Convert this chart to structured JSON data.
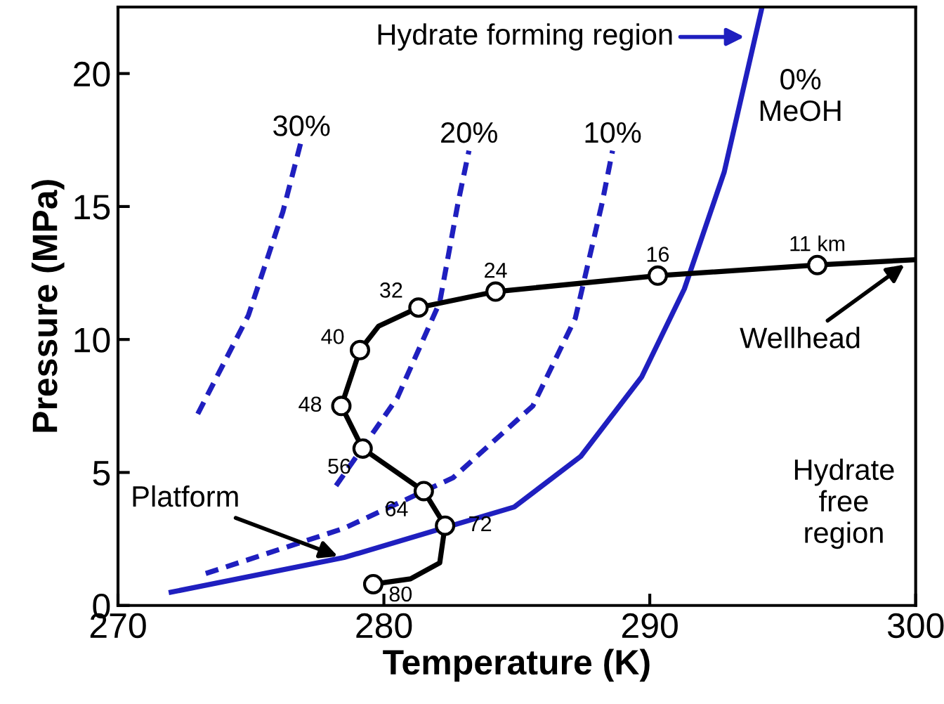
{
  "chart_data": {
    "type": "line",
    "xlabel": "Temperature (K)",
    "ylabel": "Pressure (MPa)",
    "xlim": [
      270,
      300
    ],
    "ylim": [
      0,
      22.5
    ],
    "xticks": [
      270,
      280,
      290,
      300
    ],
    "yticks": [
      0,
      5,
      10,
      15,
      20
    ],
    "grid": false,
    "legend": false,
    "series": [
      {
        "color": "#1f1fbf",
        "line_style": "solid",
        "x": [
          272,
          278.5,
          284.9,
          287.4,
          289.7,
          291.3,
          292.8,
          294.2
        ],
        "values": [
          0.5,
          1.8,
          3.7,
          5.6,
          8.6,
          11.9,
          16.3,
          22.4
        ]
      },
      {
        "color": "#1f1fbf",
        "line_style": "dashed",
        "x": [
          273.3,
          278.5,
          282.6,
          285.6,
          287.2,
          288.2,
          288.6
        ],
        "values": [
          1.2,
          2.9,
          4.8,
          7.5,
          10.8,
          15.1,
          17.1
        ]
      },
      {
        "color": "#1f1fbf",
        "line_style": "dashed",
        "x": [
          278.2,
          280.5,
          282.1,
          282.8,
          283.2
        ],
        "values": [
          4.5,
          7.8,
          11.4,
          15.2,
          17.1
        ]
      },
      {
        "color": "#1f1fbf",
        "line_style": "dashed",
        "x": [
          273,
          274.9,
          276.2,
          276.9
        ],
        "values": [
          7.2,
          10.9,
          14.8,
          17.5
        ]
      },
      {
        "color": "#000000",
        "line_style": "solid",
        "x": [
          300,
          296.3,
          290.3,
          284.2,
          281.3,
          279.8,
          279.1,
          278.4,
          279.2,
          281.5,
          282.3,
          282.1,
          281.0,
          279.6
        ],
        "values": [
          13.0,
          12.8,
          12.4,
          11.8,
          11.2,
          10.5,
          9.6,
          7.5,
          5.9,
          4.3,
          3.0,
          1.6,
          1.0,
          0.8
        ]
      },
      {
        "type": "scatter",
        "marker": "circle",
        "color": "#000000",
        "x": [
          296.3,
          290.3,
          284.2,
          281.3,
          279.1,
          278.4,
          279.2,
          281.5,
          282.3,
          279.6
        ],
        "values": [
          12.8,
          12.4,
          11.8,
          11.2,
          9.6,
          7.5,
          5.9,
          4.3,
          3.0,
          0.8
        ]
      }
    ],
    "annotations": [
      {
        "text": "11 km",
        "x": 296.3,
        "y": 12.8
      },
      {
        "text": "16",
        "x": 290.3,
        "y": 12.4
      },
      {
        "text": "24",
        "x": 284.2,
        "y": 11.8
      },
      {
        "text": "32",
        "x": 281.3,
        "y": 11.2
      },
      {
        "text": "40",
        "x": 279.1,
        "y": 9.6
      },
      {
        "text": "48",
        "x": 278.4,
        "y": 7.5
      },
      {
        "text": "56",
        "x": 279.2,
        "y": 5.9
      },
      {
        "text": "64",
        "x": 281.5,
        "y": 4.3
      },
      {
        "text": "72",
        "x": 282.3,
        "y": 3.0
      },
      {
        "text": "80",
        "x": 279.6,
        "y": 0.8
      },
      {
        "text": "30%",
        "x": 276.9,
        "y": 17.5
      },
      {
        "text": "20%",
        "x": 283.2,
        "y": 17.1
      },
      {
        "text": "10%",
        "x": 288.6,
        "y": 17.1
      },
      {
        "text": "0%\nMeOH",
        "x": 294.2,
        "y": 22.4
      },
      {
        "text": "Wellhead",
        "x": 299.7,
        "y": 12.9
      },
      {
        "text": "Platform",
        "x": 278.4,
        "y": 1.8
      },
      "Hydrate forming region",
      "Hydrate\nfree\nregion"
    ]
  }
}
